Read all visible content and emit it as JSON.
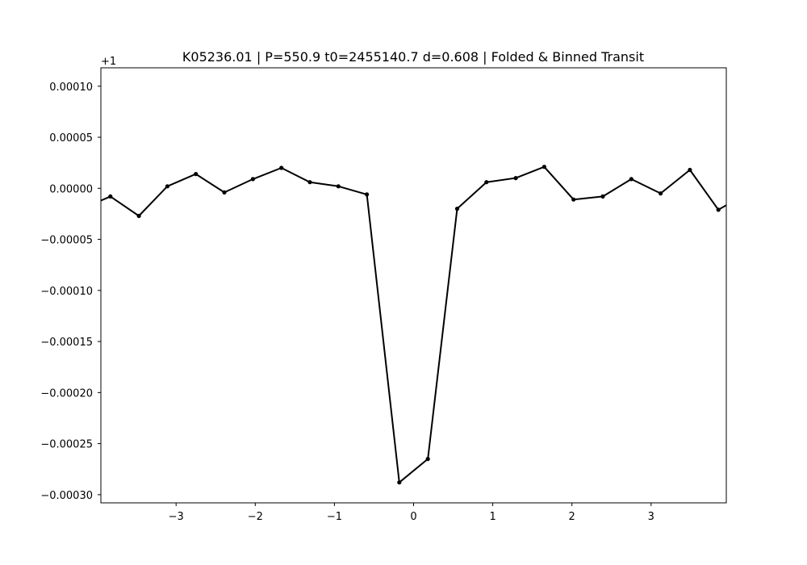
{
  "chart_data": {
    "type": "line",
    "title": "K05236.01 | P=550.9  t0=2455140.7  d=0.608 | Folded & Binned Transit",
    "xlabel": "",
    "ylabel": "",
    "y_offset_label": "+1",
    "xlim": [
      -3.95,
      3.95
    ],
    "ylim": [
      -0.000308,
      0.000118
    ],
    "grid": false,
    "x_ticks": [
      -3,
      -2,
      -1,
      0,
      1,
      2,
      3
    ],
    "x_tick_labels": [
      "−3",
      "−2",
      "−1",
      "0",
      "1",
      "2",
      "3"
    ],
    "y_ticks": [
      0.0001,
      5e-05,
      0,
      -5e-05,
      -0.0001,
      -0.00015,
      -0.0002,
      -0.00025,
      -0.0003
    ],
    "y_tick_labels": [
      "0.00010",
      "0.00005",
      "0.00000",
      "−0.00005",
      "−0.00010",
      "−0.00015",
      "−0.00020",
      "−0.00025",
      "−0.00030"
    ],
    "line_color": "#000000",
    "series": [
      {
        "x": [
          -4.19,
          -3.83,
          -3.47,
          -3.11,
          -2.75,
          -2.39,
          -2.03,
          -1.67,
          -1.31,
          -0.95,
          -0.59,
          -0.18,
          0.18,
          0.55,
          0.92,
          1.29,
          1.65,
          2.02,
          2.39,
          2.75,
          3.12,
          3.49,
          3.85,
          4.21
        ],
        "y": [
          -2e-05,
          -8e-06,
          -2.7e-05,
          2e-06,
          1.4e-05,
          -4e-06,
          9e-06,
          2e-05,
          6e-06,
          2e-06,
          -6e-06,
          -0.000288,
          -0.000265,
          -2e-05,
          6e-06,
          1e-05,
          2.1e-05,
          -1.1e-05,
          -8e-06,
          9e-06,
          -5e-06,
          1.8e-05,
          -2.1e-05,
          -5e-06
        ]
      }
    ]
  }
}
